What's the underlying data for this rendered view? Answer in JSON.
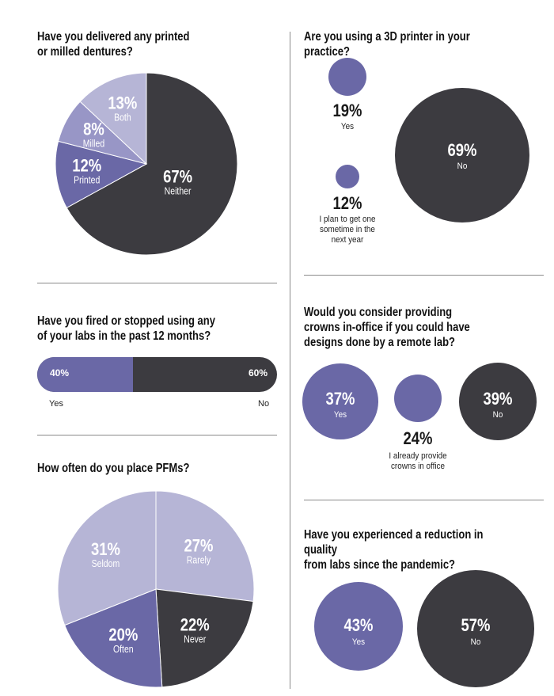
{
  "colors": {
    "dark": "#3c3b40",
    "purple": "#6a68a6",
    "mid": "#9896c6",
    "light": "#b6b5d6",
    "text_on_fill": "#ffffff",
    "label_on_light": "#5a597f"
  },
  "chart_data": [
    {
      "type": "pie",
      "id": "dentures",
      "title": "Have you delivered any printed or milled dentures?",
      "title_lines": [
        "Have you delivered any printed",
        "or milled dentures?"
      ],
      "slices": [
        {
          "label": "Neither",
          "value": 67,
          "pct_label": "67%"
        },
        {
          "label": "Printed",
          "value": 12,
          "pct_label": "12%"
        },
        {
          "label": "Milled",
          "value": 8,
          "pct_label": "8%"
        },
        {
          "label": "Both",
          "value": 13,
          "pct_label": "13%"
        }
      ]
    },
    {
      "type": "bar",
      "id": "fired_labs",
      "title": "Have you fired or stopped using any of your labs in the past 12 months?",
      "title_lines": [
        "Have you fired or stopped using any",
        "of your labs in the past 12 months?"
      ],
      "orientation": "horizontal-stacked",
      "segments": [
        {
          "label": "Yes",
          "value": 40,
          "pct_label": "40%"
        },
        {
          "label": "No",
          "value": 60,
          "pct_label": "60%"
        }
      ]
    },
    {
      "type": "pie",
      "id": "pfms",
      "title": "How often do you place PFMs?",
      "title_lines": [
        "How often do you place PFMs?"
      ],
      "slices": [
        {
          "label": "Rarely",
          "value": 27,
          "pct_label": "27%"
        },
        {
          "label": "Never",
          "value": 22,
          "pct_label": "22%"
        },
        {
          "label": "Often",
          "value": 20,
          "pct_label": "20%"
        },
        {
          "label": "Seldom",
          "value": 31,
          "pct_label": "31%"
        }
      ]
    },
    {
      "type": "bubble",
      "id": "printer",
      "title": "Are you using a 3D printer in your practice?",
      "title_lines": [
        "Are you using a 3D printer in your practice?"
      ],
      "bubbles": [
        {
          "label": "Yes",
          "value": 19,
          "pct_label": "19%"
        },
        {
          "label": "I plan to get one sometime in the next year",
          "label_lines": [
            "I plan to get one",
            "sometime in the",
            "next year"
          ],
          "value": 12,
          "pct_label": "12%"
        },
        {
          "label": "No",
          "value": 69,
          "pct_label": "69%"
        }
      ]
    },
    {
      "type": "bubble",
      "id": "crowns",
      "title": "Would you consider providing crowns in-office if you could have designs done by a remote lab?",
      "title_lines": [
        "Would you consider providing",
        "crowns in-office if you could have",
        "designs done by a remote lab?"
      ],
      "bubbles": [
        {
          "label": "Yes",
          "value": 37,
          "pct_label": "37%"
        },
        {
          "label": "I already provide crowns in office",
          "label_lines": [
            "I already provide",
            "crowns in office"
          ],
          "value": 24,
          "pct_label": "24%"
        },
        {
          "label": "No",
          "value": 39,
          "pct_label": "39%"
        }
      ]
    },
    {
      "type": "bubble",
      "id": "quality",
      "title": "Have you experienced a reduction in quality from labs since the pandemic?",
      "title_lines": [
        "Have you experienced a reduction in quality",
        "from labs since the pandemic?"
      ],
      "bubbles": [
        {
          "label": "Yes",
          "value": 43,
          "pct_label": "43%"
        },
        {
          "label": "No",
          "value": 57,
          "pct_label": "57%"
        }
      ]
    }
  ]
}
